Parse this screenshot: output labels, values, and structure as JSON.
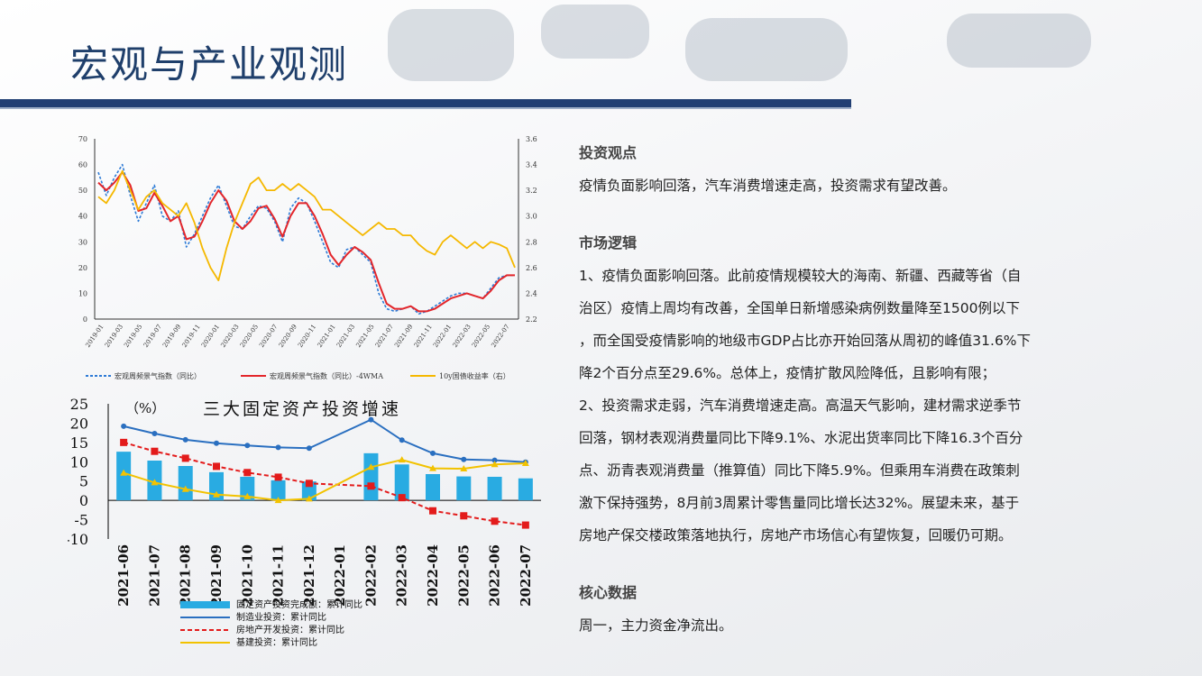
{
  "header": {
    "title": "宏观与产业观测"
  },
  "chart_data": [
    {
      "type": "line",
      "x_ticks": [
        "2019-01",
        "2019-03",
        "2019-05",
        "2019-07",
        "2019-09",
        "2019-11",
        "2020-01",
        "2020-03",
        "2020-05",
        "2020-07",
        "2020-09",
        "2020-11",
        "2021-01",
        "2021-03",
        "2021-05",
        "2021-07",
        "2021-09",
        "2021-11",
        "2022-01",
        "2022-03",
        "2022-05",
        "2022-07"
      ],
      "ylim": [
        0,
        70
      ],
      "y_ticks": [
        0,
        10,
        20,
        30,
        40,
        50,
        60,
        70
      ],
      "y2lim": [
        2.2,
        3.6
      ],
      "y2_ticks": [
        "2.2",
        "2.4",
        "2.6",
        "2.8",
        "3.0",
        "3.2",
        "3.4",
        "3.6"
      ],
      "grid": false,
      "legend_position": "bottom",
      "colors": {
        "blue": "#2e7bd6",
        "red": "#e3262b",
        "orange": "#f5b800"
      },
      "series": [
        {
          "name": "宏观周频景气指数（同比）",
          "axis": "left",
          "style": "dashed",
          "values": [
            57,
            48,
            55,
            60,
            48,
            38,
            45,
            52,
            40,
            38,
            42,
            28,
            33,
            40,
            47,
            52,
            44,
            36,
            35,
            40,
            44,
            43,
            38,
            30,
            43,
            47,
            45,
            38,
            30,
            22,
            20,
            27,
            28,
            25,
            22,
            10,
            4,
            3,
            4,
            5,
            2,
            3,
            5,
            7,
            9,
            10,
            10,
            9,
            8,
            12,
            16,
            17,
            17
          ]
        },
        {
          "name": "宏观周频景气指数（同比）-4WMA",
          "axis": "left",
          "style": "solid",
          "values": [
            53,
            50,
            53,
            57,
            52,
            42,
            43,
            49,
            44,
            38,
            40,
            31,
            32,
            38,
            45,
            50,
            46,
            38,
            35,
            38,
            43,
            44,
            39,
            32,
            40,
            45,
            45,
            40,
            33,
            25,
            21,
            25,
            28,
            26,
            23,
            14,
            6,
            4,
            4,
            5,
            3,
            3,
            4,
            6,
            8,
            9,
            10,
            9,
            8,
            11,
            15,
            17,
            17
          ]
        },
        {
          "name": "10y国债收益率（右）",
          "axis": "right",
          "style": "solid",
          "values": [
            3.15,
            3.1,
            3.2,
            3.35,
            3.2,
            3.05,
            3.15,
            3.2,
            3.1,
            3.05,
            3.0,
            3.1,
            2.95,
            2.75,
            2.6,
            2.5,
            2.75,
            2.95,
            3.1,
            3.25,
            3.3,
            3.2,
            3.2,
            3.25,
            3.2,
            3.25,
            3.2,
            3.15,
            3.05,
            3.05,
            3.0,
            2.95,
            2.9,
            2.85,
            2.9,
            2.95,
            2.9,
            2.9,
            2.85,
            2.85,
            2.78,
            2.73,
            2.7,
            2.8,
            2.85,
            2.8,
            2.75,
            2.8,
            2.75,
            2.8,
            2.78,
            2.75,
            2.6
          ]
        }
      ]
    },
    {
      "type": "bar",
      "title": "三大固定资产投资增速",
      "ylabel": "（%）",
      "ylim": [
        -10,
        25
      ],
      "y_ticks": [
        "25",
        "20",
        "15",
        "10",
        "5",
        "0",
        "-5",
        "-10"
      ],
      "categories": [
        "2021-06",
        "2021-07",
        "2021-08",
        "2021-09",
        "2021-10",
        "2021-11",
        "2021-12",
        "2022-01",
        "2022-02",
        "2022-03",
        "2022-04",
        "2022-05",
        "2022-06",
        "2022-07"
      ],
      "legend_position": "bottom",
      "series": [
        {
          "name": "固定资产投资完成额：累计同比",
          "kind": "bar",
          "color": "#29abe2",
          "values": [
            12.6,
            10.3,
            8.9,
            7.3,
            6.1,
            5.2,
            4.9,
            null,
            12.2,
            9.3,
            6.8,
            6.2,
            6.1,
            5.7
          ]
        },
        {
          "name": "制造业投资：累计同比",
          "kind": "line",
          "color": "#2a6fc0",
          "values": [
            19.2,
            17.3,
            15.7,
            14.8,
            14.2,
            13.7,
            13.5,
            null,
            20.9,
            15.6,
            12.2,
            10.6,
            10.4,
            9.9
          ]
        },
        {
          "name": "房地产开发投资：累计同比",
          "kind": "line",
          "dashed": true,
          "color": "#e31b1b",
          "values": [
            15.0,
            12.7,
            10.9,
            8.8,
            7.2,
            6.0,
            4.4,
            null,
            3.7,
            0.7,
            -2.7,
            -4.0,
            -5.4,
            -6.4
          ]
        },
        {
          "name": "基建投资：累计同比",
          "kind": "line",
          "color": "#f2c200",
          "values": [
            7.1,
            4.6,
            2.9,
            1.5,
            1.0,
            0.0,
            0.4,
            null,
            8.6,
            10.5,
            8.3,
            8.2,
            9.3,
            9.6
          ]
        }
      ]
    }
  ],
  "text_panel": {
    "section1": {
      "heading": "投资观点",
      "body": "疫情负面影响回落，汽车消费增速走高，投资需求有望改善。"
    },
    "section2": {
      "heading": "市场逻辑",
      "lines": [
        "1、疫情负面影响回落。此前疫情规模较大的海南、新疆、西藏等省（自",
        "治区）疫情上周均有改善，全国单日新增感染病例数量降至1500例以下",
        "，而全国受疫情影响的地级市GDP占比亦开始回落从周初的峰值31.6%下",
        "降2个百分点至29.6%。总体上，疫情扩散风险降低，且影响有限；",
        "2、投资需求走弱，汽车消费增速走高。高温天气影响，建材需求逆季节",
        "回落，钢材表观消费量同比下降9.1%、水泥出货率同比下降16.3个百分",
        "点、沥青表观消费量（推算值）同比下降5.9%。但乘用车消费在政策刺",
        "激下保持强势，8月前3周累计零售量同比增长达32%。展望未来，基于",
        "房地产保交楼政策落地执行，房地产市场信心有望恢复，回暖仍可期。"
      ]
    },
    "section3": {
      "heading": "核心数据",
      "body": "周一，主力资金净流出。"
    }
  }
}
